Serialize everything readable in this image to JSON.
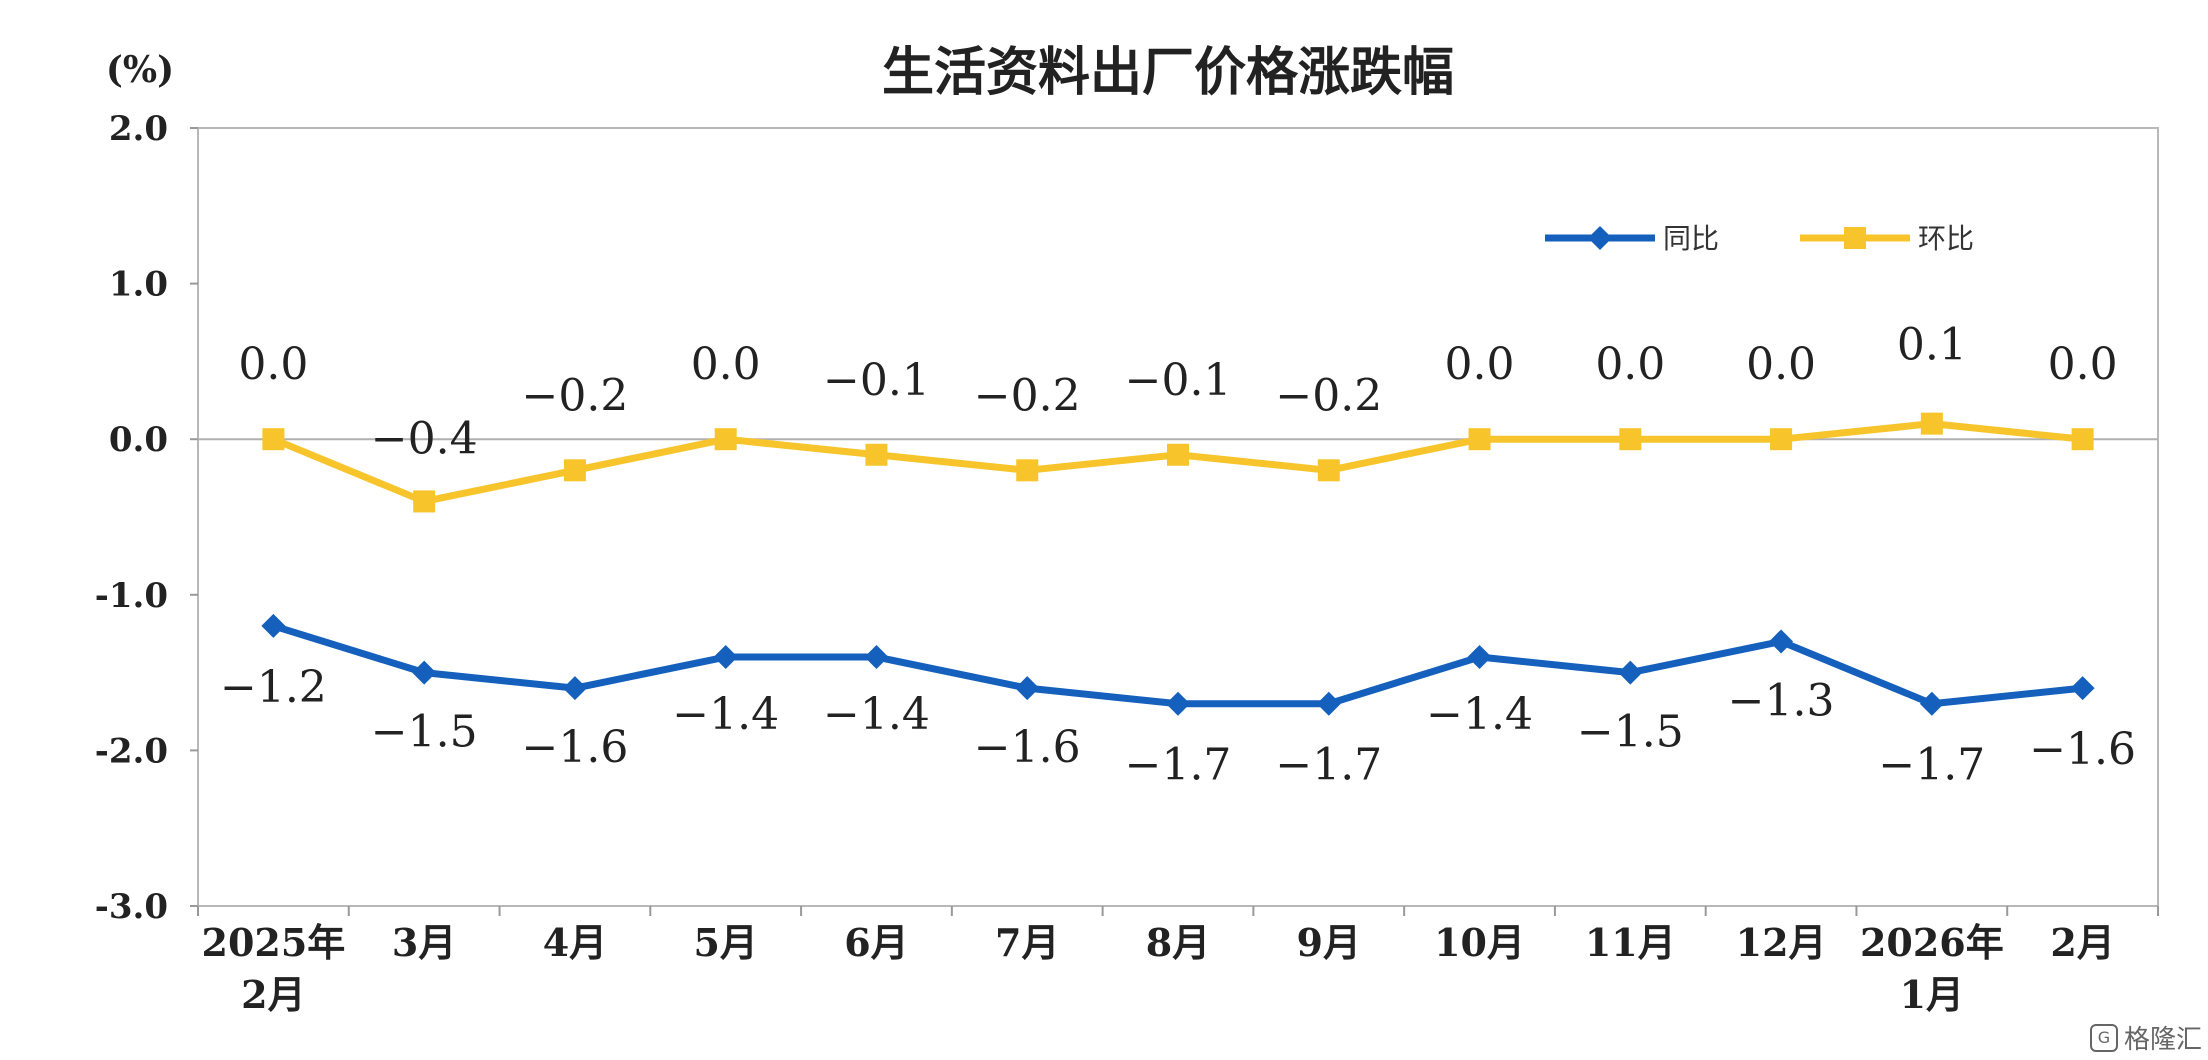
{
  "chart_data": {
    "type": "line",
    "title": "生活资料出厂价格涨跌幅",
    "unit_label": "(%)",
    "categories": [
      [
        "2025年",
        "2月"
      ],
      [
        "3月"
      ],
      [
        "4月"
      ],
      [
        "5月"
      ],
      [
        "6月"
      ],
      [
        "7月"
      ],
      [
        "8月"
      ],
      [
        "9月"
      ],
      [
        "10月"
      ],
      [
        "11月"
      ],
      [
        "12月"
      ],
      [
        "2026年",
        "1月"
      ],
      [
        "2月"
      ]
    ],
    "ylim": [
      -3.0,
      2.0
    ],
    "yticks": [
      "2.0",
      "1.0",
      "0.0",
      "-1.0",
      "-2.0",
      "-3.0"
    ],
    "ytick_values": [
      2.0,
      1.0,
      0.0,
      -1.0,
      -2.0,
      -3.0
    ],
    "grid": false,
    "zero_line": true,
    "legend_position": "top-right",
    "series": [
      {
        "name": "同比",
        "color": "#1560bd",
        "marker": "diamond",
        "values": [
          -1.2,
          -1.5,
          -1.6,
          -1.4,
          -1.4,
          -1.6,
          -1.7,
          -1.7,
          -1.4,
          -1.5,
          -1.3,
          -1.7,
          -1.6
        ],
        "labels": [
          "−1.2",
          "−1.5",
          "−1.6",
          "−1.4",
          "−1.4",
          "−1.6",
          "−1.7",
          "−1.7",
          "−1.4",
          "−1.5",
          "−1.3",
          "−1.7",
          "−1.6"
        ]
      },
      {
        "name": "环比",
        "color": "#f7c52b",
        "marker": "square",
        "values": [
          0.0,
          -0.4,
          -0.2,
          0.0,
          -0.1,
          -0.2,
          -0.1,
          -0.2,
          0.0,
          0.0,
          0.0,
          0.1,
          0.0
        ],
        "labels": [
          "0.0",
          "−0.4",
          "−0.2",
          "0.0",
          "−0.1",
          "−0.2",
          "−0.1",
          "−0.2",
          "0.0",
          "0.0",
          "0.0",
          "0.1",
          "0.0"
        ]
      }
    ]
  },
  "watermark": {
    "icon": "gelonghui-logo-icon",
    "text": "格隆汇"
  }
}
